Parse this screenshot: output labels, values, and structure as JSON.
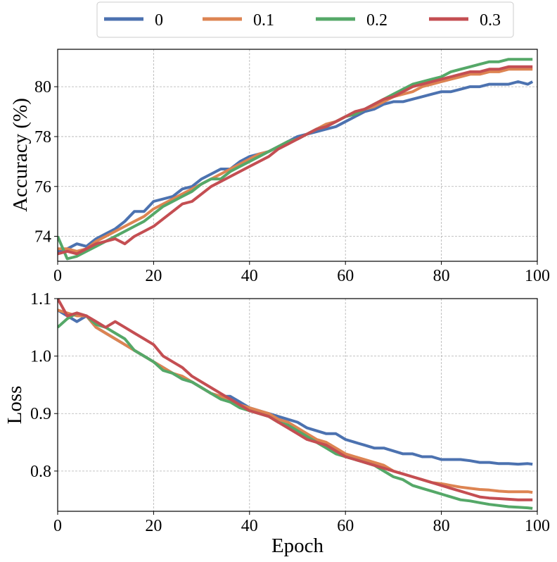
{
  "legend": {
    "entries": [
      "0",
      "0.1",
      "0.2",
      "0.3"
    ]
  },
  "colors": {
    "0": "#4c72b0",
    "0.1": "#dd8452",
    "0.2": "#55a868",
    "0.3": "#c44e52",
    "grid": "#b0b0b0"
  },
  "chart_data": [
    {
      "type": "line",
      "ylabel": "Accuracy (%)",
      "xlabel": "",
      "xlim": [
        0,
        100
      ],
      "ylim": [
        73,
        81.5
      ],
      "xticks": [
        0,
        20,
        40,
        60,
        80,
        100
      ],
      "yticks": [
        74,
        76,
        78,
        80
      ],
      "xticklabels": [
        "0",
        "20",
        "40",
        "60",
        "80",
        "100"
      ],
      "yticklabels": [
        "74",
        "76",
        "78",
        "80"
      ],
      "grid": true,
      "legend_position": "top-center (above plots)",
      "x": [
        0,
        2,
        4,
        6,
        8,
        10,
        12,
        14,
        16,
        18,
        20,
        22,
        24,
        26,
        28,
        30,
        32,
        34,
        36,
        38,
        40,
        42,
        44,
        46,
        48,
        50,
        52,
        54,
        56,
        58,
        60,
        62,
        64,
        66,
        68,
        70,
        72,
        74,
        76,
        78,
        80,
        82,
        84,
        86,
        88,
        90,
        92,
        94,
        96,
        98,
        99
      ],
      "series": [
        {
          "name": "0",
          "values": [
            73.4,
            73.5,
            73.7,
            73.6,
            73.9,
            74.1,
            74.3,
            74.6,
            75.0,
            75.0,
            75.4,
            75.5,
            75.6,
            75.9,
            76.0,
            76.3,
            76.5,
            76.7,
            76.7,
            77.0,
            77.2,
            77.3,
            77.4,
            77.6,
            77.8,
            78.0,
            78.1,
            78.2,
            78.3,
            78.4,
            78.6,
            78.8,
            79.0,
            79.1,
            79.3,
            79.4,
            79.4,
            79.5,
            79.6,
            79.7,
            79.8,
            79.8,
            79.9,
            80.0,
            80.0,
            80.1,
            80.1,
            80.1,
            80.2,
            80.1,
            80.2
          ]
        },
        {
          "name": "0.1",
          "values": [
            73.5,
            73.5,
            73.4,
            73.5,
            73.8,
            74.0,
            74.2,
            74.4,
            74.6,
            74.8,
            75.1,
            75.3,
            75.5,
            75.7,
            75.9,
            76.1,
            76.3,
            76.5,
            76.7,
            76.9,
            77.1,
            77.3,
            77.4,
            77.6,
            77.8,
            77.9,
            78.1,
            78.3,
            78.5,
            78.6,
            78.8,
            78.9,
            79.1,
            79.2,
            79.4,
            79.6,
            79.7,
            79.8,
            80.0,
            80.1,
            80.2,
            80.3,
            80.4,
            80.5,
            80.5,
            80.6,
            80.6,
            80.7,
            80.7,
            80.7,
            80.7
          ]
        },
        {
          "name": "0.2",
          "values": [
            74.0,
            73.1,
            73.2,
            73.4,
            73.6,
            73.8,
            74.0,
            74.2,
            74.4,
            74.6,
            74.9,
            75.2,
            75.4,
            75.6,
            75.8,
            76.1,
            76.3,
            76.3,
            76.6,
            76.8,
            77.0,
            77.2,
            77.4,
            77.6,
            77.8,
            77.9,
            78.1,
            78.3,
            78.4,
            78.6,
            78.8,
            78.9,
            79.1,
            79.3,
            79.5,
            79.7,
            79.9,
            80.1,
            80.2,
            80.3,
            80.4,
            80.6,
            80.7,
            80.8,
            80.9,
            81.0,
            81.0,
            81.1,
            81.1,
            81.1,
            81.1
          ]
        },
        {
          "name": "0.3",
          "values": [
            73.3,
            73.4,
            73.3,
            73.5,
            73.7,
            73.8,
            73.9,
            73.7,
            74.0,
            74.2,
            74.4,
            74.7,
            75.0,
            75.3,
            75.4,
            75.7,
            76.0,
            76.2,
            76.4,
            76.6,
            76.8,
            77.0,
            77.2,
            77.5,
            77.7,
            77.9,
            78.1,
            78.3,
            78.4,
            78.6,
            78.8,
            79.0,
            79.1,
            79.3,
            79.5,
            79.6,
            79.8,
            80.0,
            80.1,
            80.2,
            80.3,
            80.4,
            80.5,
            80.6,
            80.6,
            80.7,
            80.7,
            80.8,
            80.8,
            80.8,
            80.8
          ]
        }
      ]
    },
    {
      "type": "line",
      "ylabel": "Loss",
      "xlabel": "Epoch",
      "xlim": [
        0,
        100
      ],
      "ylim": [
        0.73,
        1.1
      ],
      "xticks": [
        0,
        20,
        40,
        60,
        80,
        100
      ],
      "yticks": [
        0.8,
        0.9,
        1.0,
        1.1
      ],
      "xticklabels": [
        "0",
        "20",
        "40",
        "60",
        "80",
        "100"
      ],
      "yticklabels": [
        "0.8",
        "0.9",
        "1.0",
        "1.1"
      ],
      "grid": true,
      "x": [
        0,
        2,
        4,
        6,
        8,
        10,
        12,
        14,
        16,
        18,
        20,
        22,
        24,
        26,
        28,
        30,
        32,
        34,
        36,
        38,
        40,
        42,
        44,
        46,
        48,
        50,
        52,
        54,
        56,
        58,
        60,
        62,
        64,
        66,
        68,
        70,
        72,
        74,
        76,
        78,
        80,
        82,
        84,
        86,
        88,
        90,
        92,
        94,
        96,
        98,
        99
      ],
      "series": [
        {
          "name": "0",
          "values": [
            1.08,
            1.07,
            1.06,
            1.07,
            1.05,
            1.04,
            1.03,
            1.02,
            1.01,
            1.0,
            0.99,
            0.98,
            0.97,
            0.96,
            0.955,
            0.945,
            0.935,
            0.93,
            0.93,
            0.92,
            0.91,
            0.905,
            0.9,
            0.895,
            0.89,
            0.885,
            0.875,
            0.87,
            0.865,
            0.865,
            0.855,
            0.85,
            0.845,
            0.84,
            0.84,
            0.835,
            0.83,
            0.83,
            0.825,
            0.825,
            0.82,
            0.82,
            0.82,
            0.818,
            0.815,
            0.815,
            0.813,
            0.813,
            0.812,
            0.813,
            0.812
          ]
        },
        {
          "name": "0.1",
          "values": [
            1.08,
            1.075,
            1.07,
            1.07,
            1.05,
            1.04,
            1.03,
            1.02,
            1.01,
            1.0,
            0.99,
            0.98,
            0.97,
            0.965,
            0.955,
            0.945,
            0.935,
            0.93,
            0.92,
            0.915,
            0.91,
            0.905,
            0.9,
            0.89,
            0.885,
            0.875,
            0.865,
            0.855,
            0.85,
            0.84,
            0.83,
            0.825,
            0.82,
            0.815,
            0.81,
            0.8,
            0.795,
            0.79,
            0.785,
            0.78,
            0.778,
            0.775,
            0.772,
            0.77,
            0.768,
            0.767,
            0.765,
            0.764,
            0.764,
            0.764,
            0.763
          ]
        },
        {
          "name": "0.2",
          "values": [
            1.05,
            1.065,
            1.075,
            1.07,
            1.055,
            1.05,
            1.04,
            1.03,
            1.01,
            1.0,
            0.99,
            0.975,
            0.97,
            0.96,
            0.955,
            0.945,
            0.935,
            0.925,
            0.92,
            0.91,
            0.905,
            0.9,
            0.895,
            0.885,
            0.88,
            0.87,
            0.86,
            0.85,
            0.84,
            0.83,
            0.825,
            0.82,
            0.815,
            0.81,
            0.8,
            0.79,
            0.785,
            0.775,
            0.77,
            0.765,
            0.76,
            0.755,
            0.75,
            0.748,
            0.745,
            0.742,
            0.74,
            0.738,
            0.737,
            0.736,
            0.735
          ]
        },
        {
          "name": "0.3",
          "values": [
            1.1,
            1.07,
            1.075,
            1.07,
            1.06,
            1.05,
            1.06,
            1.05,
            1.04,
            1.03,
            1.02,
            1.0,
            0.99,
            0.98,
            0.965,
            0.955,
            0.945,
            0.935,
            0.925,
            0.915,
            0.905,
            0.9,
            0.895,
            0.885,
            0.875,
            0.865,
            0.855,
            0.85,
            0.845,
            0.835,
            0.825,
            0.82,
            0.815,
            0.81,
            0.805,
            0.8,
            0.795,
            0.79,
            0.785,
            0.78,
            0.775,
            0.77,
            0.765,
            0.76,
            0.755,
            0.753,
            0.752,
            0.751,
            0.75,
            0.75,
            0.75
          ]
        }
      ]
    }
  ]
}
